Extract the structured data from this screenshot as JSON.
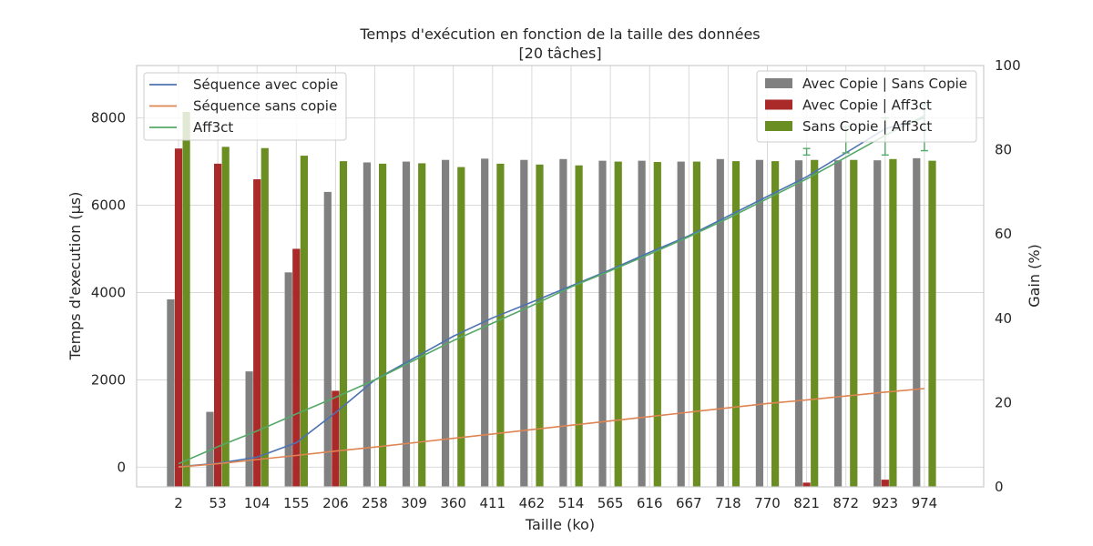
{
  "chart_data": {
    "type": "bar",
    "title": "Temps d'exécution en fonction de la taille des données",
    "subtitle": "[20 tâches]",
    "xlabel": "Taille (ko)",
    "ylabel": "Temps d'execution (µs)",
    "y2label": "Gain (%)",
    "categories": [
      "2",
      "53",
      "104",
      "155",
      "206",
      "258",
      "309",
      "360",
      "411",
      "462",
      "514",
      "565",
      "616",
      "667",
      "718",
      "770",
      "821",
      "872",
      "923",
      "974"
    ],
    "ylim": [
      -450,
      9200
    ],
    "yticks": [
      0,
      2000,
      4000,
      6000,
      8000
    ],
    "y2lim": [
      0,
      100
    ],
    "y2ticks": [
      0,
      20,
      40,
      60,
      80,
      100
    ],
    "grid": true,
    "line_series": [
      {
        "name": "Séquence avec copie",
        "color": "#4c72b0",
        "values": [
          10,
          90,
          230,
          560,
          1250,
          2000,
          2500,
          3000,
          3420,
          3780,
          4150,
          4520,
          4920,
          5300,
          5750,
          6200,
          6650,
          7200,
          7750,
          8000
        ]
      },
      {
        "name": "Séquence sans copie",
        "color": "#dd8452",
        "values": [
          5,
          80,
          175,
          270,
          370,
          460,
          560,
          660,
          760,
          860,
          960,
          1060,
          1160,
          1260,
          1360,
          1460,
          1540,
          1630,
          1720,
          1800
        ]
      },
      {
        "name": "Aff3ct",
        "color": "#55a868",
        "values": [
          80,
          470,
          830,
          1220,
          1600,
          2000,
          2450,
          2900,
          3300,
          3700,
          4130,
          4500,
          4880,
          5280,
          5700,
          6150,
          6600,
          7100,
          7600,
          8050
        ]
      }
    ],
    "aff3ct_errorbars": [
      {
        "x": "821",
        "low": 7150,
        "high": 7300
      },
      {
        "x": "872",
        "low": 7200,
        "high": 7800
      },
      {
        "x": "923",
        "low": 7150,
        "high": 8000
      },
      {
        "x": "974",
        "low": 7250,
        "high": 8300
      }
    ],
    "bar_series": [
      {
        "name": "Avec Copie | Sans Copie",
        "color": "#808080",
        "values": [
          44.5,
          17.8,
          27.4,
          50.9,
          70.0,
          77.0,
          77.2,
          77.6,
          77.9,
          77.6,
          77.8,
          77.4,
          77.4,
          77.2,
          77.8,
          77.6,
          77.5,
          77.5,
          77.5,
          78.0
        ]
      },
      {
        "name": "Avec Copie | Aff3ct",
        "color": "#aa2a2a",
        "values": [
          80.3,
          76.7,
          73.0,
          56.5,
          22.8,
          0,
          0,
          0,
          0,
          0,
          0,
          0,
          0,
          0,
          0,
          0,
          1.0,
          0,
          1.7,
          0
        ]
      },
      {
        "name": "Sans Copie | Aff3ct",
        "color": "#6b8e23",
        "values": [
          89.0,
          80.7,
          80.4,
          78.6,
          77.3,
          76.7,
          76.8,
          75.9,
          76.7,
          76.5,
          76.3,
          77.2,
          77.1,
          77.2,
          77.3,
          77.3,
          77.6,
          77.6,
          77.8,
          77.4
        ]
      }
    ],
    "line_legend_position": "upper-left",
    "bar_legend_position": "upper-right"
  }
}
